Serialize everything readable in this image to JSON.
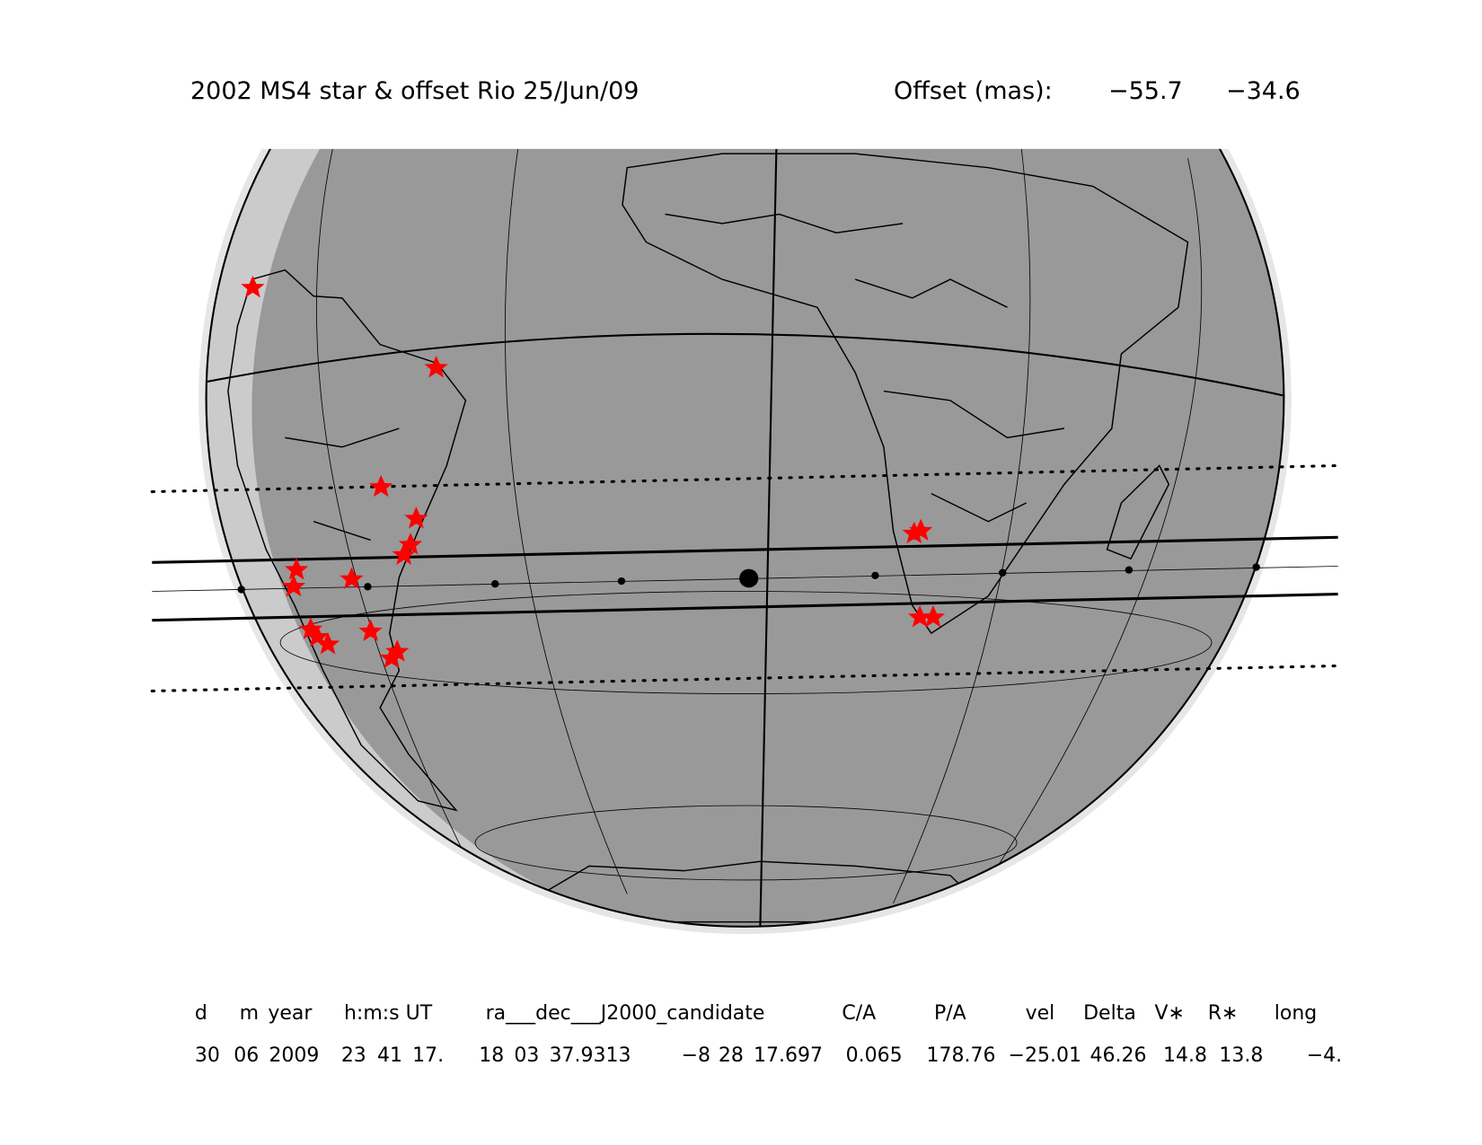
{
  "header": {
    "title": "2002 MS4 star & offset Rio 25/Jun/09",
    "offset_label": "Offset (mas):",
    "offset_values": [
      "−55.7",
      "−34.6"
    ]
  },
  "table": {
    "headers": [
      "d",
      "m",
      "year",
      "h:m:s UT",
      "ra___dec___J2000_candidate",
      "C/A",
      "P/A",
      "vel",
      "Delta",
      "V∗",
      "R∗",
      "long"
    ],
    "rows": [
      [
        "30",
        "06",
        "2009",
        "23",
        "41",
        "17.",
        "18",
        "03",
        "37.9313",
        "−8",
        "28",
        "17.697",
        "0.065",
        "178.76",
        "−25.01",
        "46.26",
        "14.8",
        "13.8",
        "−4."
      ]
    ]
  }
}
